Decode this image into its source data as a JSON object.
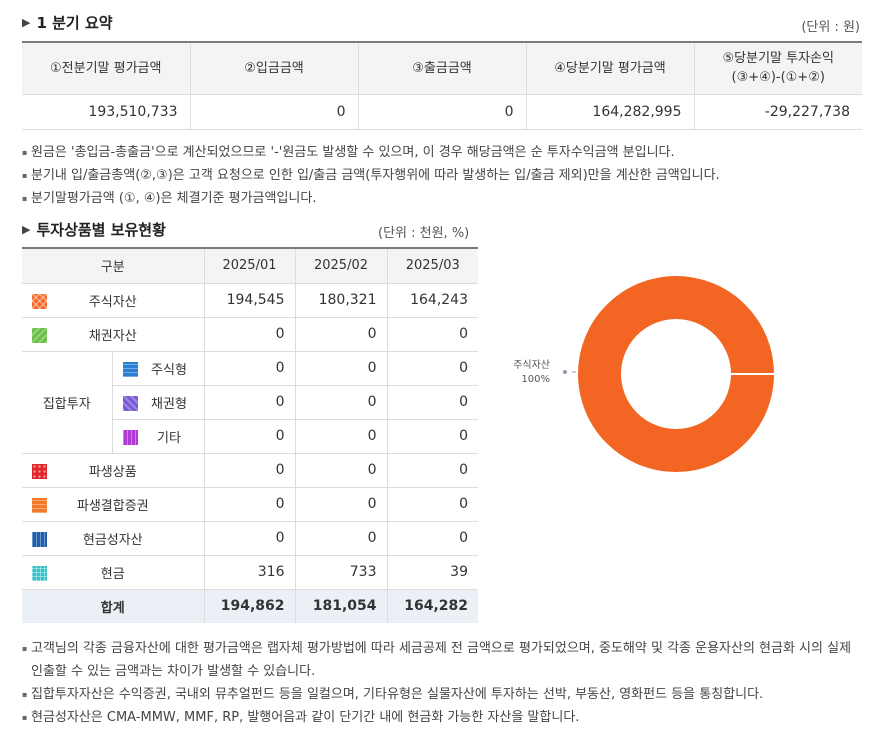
{
  "summary": {
    "title": "1 분기 요약",
    "unit": "(단위 : 원)",
    "headers": [
      "①전분기말 평가금액",
      "②입금금액",
      "③출금금액",
      "④당분기말 평가금액",
      "⑤당분기말 투자손익",
      "(③+④)-(①+②)"
    ],
    "values": [
      "193,510,733",
      "0",
      "0",
      "164,282,995",
      "-29,227,738"
    ],
    "notes": [
      "원금은 '총입금-총출금'으로 계산되었으므로 '-'원금도 발생할 수 있으며, 이 경우 해당금액은 순 투자수익금액 분입니다.",
      "분기내 입/출금총액(②,③)은 고객 요청으로 인한 입/출금 금액(투자행위에 따라 발생하는 입/출금 제외)만을 계산한 금액입니다.",
      "분기말평가금액 (①, ④)은 체결기준 평가금액입니다."
    ]
  },
  "holdings": {
    "title": "투자상품별 보유현황",
    "unit": "(단위 : 천원, %)",
    "headers": [
      "구분",
      "2025/01",
      "2025/02",
      "2025/03"
    ],
    "group_label": "집합투자",
    "rows": [
      {
        "label": "주식자산",
        "values": [
          "194,545",
          "180,321",
          "164,243"
        ],
        "color": "#f26522"
      },
      {
        "label": "채권자산",
        "values": [
          "0",
          "0",
          "0"
        ],
        "color": "#6cc04a"
      },
      {
        "label": "주식형",
        "values": [
          "0",
          "0",
          "0"
        ],
        "color": "#2a7fd4"
      },
      {
        "label": "채권형",
        "values": [
          "0",
          "0",
          "0"
        ],
        "color": "#7a5bd6"
      },
      {
        "label": "기타",
        "values": [
          "0",
          "0",
          "0"
        ],
        "color": "#b33ad6"
      },
      {
        "label": "파생상품",
        "values": [
          "0",
          "0",
          "0"
        ],
        "color": "#e0262b"
      },
      {
        "label": "파생결합증권",
        "values": [
          "0",
          "0",
          "0"
        ],
        "color": "#f07a2a"
      },
      {
        "label": "현금성자산",
        "values": [
          "0",
          "0",
          "0"
        ],
        "color": "#1f5fae"
      },
      {
        "label": "현금",
        "values": [
          "316",
          "733",
          "39"
        ],
        "color": "#36c2c9"
      }
    ],
    "total": {
      "label": "합계",
      "values": [
        "194,862",
        "181,054",
        "164,282"
      ]
    },
    "notes": [
      "고객님의 각종 금융자산에 대한 평가금액은 랩자체 평가방법에 따라 세금공제 전 금액으로 평가되었으며, 중도해약 및 각종 운용자산의 현금화 시의 실제 인출할 수 있는 금액과는 차이가 발생할 수 있습니다.",
      "집합투자자산은 수익증권, 국내외 뮤추얼펀드 등을 일컬으며, 기타유형은 실물자산에 투자하는 선박, 부동산, 영화펀드 등을 통칭합니다.",
      "현금성자산은 CMA-MMW, MMF, RP, 발행어음과 같이 단기간 내에 현금화 가능한 자산을 말합니다."
    ]
  },
  "chart_data": {
    "type": "pie",
    "title": "",
    "categories": [
      "주식자산"
    ],
    "values": [
      100
    ],
    "value_labels": [
      "100%"
    ],
    "colors": [
      "#f26522"
    ],
    "donut": true
  }
}
